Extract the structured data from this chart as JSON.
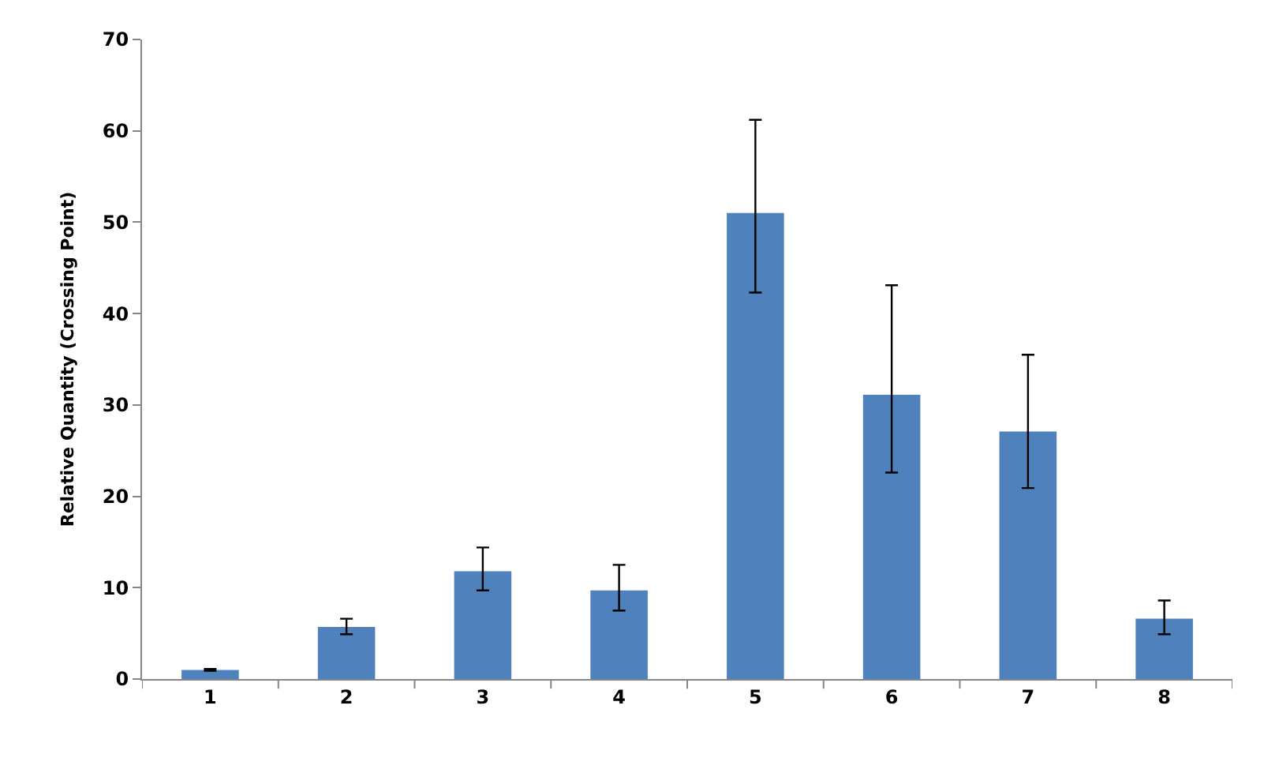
{
  "chart_data": {
    "type": "bar",
    "ylabel": "Relative Quantity (Crossing Point)",
    "categories": [
      "1",
      "2",
      "3",
      "4",
      "5",
      "6",
      "7",
      "8"
    ],
    "values": [
      1.0,
      5.7,
      11.8,
      9.7,
      51.0,
      31.1,
      27.1,
      6.6
    ],
    "errors": [
      [
        0.9,
        1.1
      ],
      [
        4.9,
        6.6
      ],
      [
        9.7,
        14.4
      ],
      [
        7.5,
        12.5
      ],
      [
        42.3,
        61.2
      ],
      [
        22.6,
        43.1
      ],
      [
        20.9,
        35.5
      ],
      [
        4.9,
        8.6
      ]
    ],
    "color": "#4f81bd",
    "ylim": [
      0,
      70
    ],
    "yticks": [
      0,
      10,
      20,
      30,
      40,
      50,
      60,
      70
    ],
    "legend": false
  }
}
